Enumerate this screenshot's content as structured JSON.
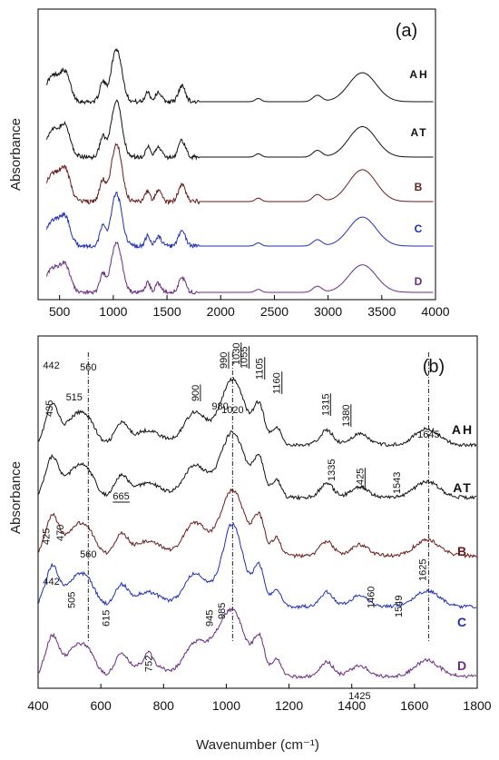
{
  "chart_data": [
    {
      "panel_label": "(a)",
      "type": "line",
      "xlabel": "",
      "ylabel": "Absorbance",
      "xlim": [
        300,
        4000
      ],
      "x_ticks": [
        500,
        1000,
        1500,
        2000,
        2500,
        3000,
        3500,
        4000
      ],
      "series": [
        {
          "name": "AH",
          "color": "#111111",
          "offset": 4,
          "amp": 1.0
        },
        {
          "name": "AT",
          "color": "#111111",
          "offset": 3,
          "amp": 1.05
        },
        {
          "name": "B",
          "color": "#6b1a1a",
          "offset": 2,
          "amp": 1.1
        },
        {
          "name": "C",
          "color": "#1f2fb5",
          "offset": 1,
          "amp": 1.0
        },
        {
          "name": "D",
          "color": "#6a2a82",
          "offset": 0,
          "amp": 0.95
        }
      ]
    },
    {
      "panel_label": "(b)",
      "type": "line",
      "xlabel": "Wavenumber (cm⁻¹)",
      "ylabel": "Absorbance",
      "xlim": [
        400,
        1800
      ],
      "x_ticks": [
        400,
        600,
        800,
        1000,
        1200,
        1400,
        1600,
        1800
      ],
      "reference_lines": [
        560,
        1020,
        1645
      ],
      "series": [
        {
          "name": "AH",
          "color": "#111111",
          "offset": 4
        },
        {
          "name": "AT",
          "color": "#111111",
          "offset": 3
        },
        {
          "name": "B",
          "color": "#6b1a1a",
          "offset": 2
        },
        {
          "name": "C",
          "color": "#1f2fb5",
          "offset": 1
        },
        {
          "name": "D",
          "color": "#6a2a82",
          "offset": 0
        }
      ],
      "annotations": [
        {
          "text": "442",
          "x": 442,
          "series": "AH",
          "rotated": false,
          "underline": false
        },
        {
          "text": "560",
          "x": 560,
          "series": "AH",
          "rotated": false,
          "underline": false
        },
        {
          "text": "900",
          "x": 900,
          "series": "AH",
          "rotated": true,
          "underline": true
        },
        {
          "text": "990",
          "x": 990,
          "series": "AH",
          "rotated": true,
          "underline": true
        },
        {
          "text": "1030",
          "x": 1030,
          "series": "AH",
          "rotated": true,
          "underline": true
        },
        {
          "text": "1055",
          "x": 1055,
          "series": "AH",
          "rotated": true,
          "underline": true
        },
        {
          "text": "1105",
          "x": 1105,
          "series": "AH",
          "rotated": true,
          "underline": true
        },
        {
          "text": "1160",
          "x": 1160,
          "series": "AH",
          "rotated": true,
          "underline": true
        },
        {
          "text": "1315",
          "x": 1315,
          "series": "AH",
          "rotated": true,
          "underline": true
        },
        {
          "text": "1380",
          "x": 1380,
          "series": "AH",
          "rotated": true,
          "underline": true
        },
        {
          "text": "1645",
          "x": 1645,
          "series": "AH",
          "rotated": false,
          "underline": false
        },
        {
          "text": "435",
          "x": 435,
          "series": "AT",
          "rotated": true,
          "underline": false
        },
        {
          "text": "515",
          "x": 515,
          "series": "AT",
          "rotated": false,
          "underline": false
        },
        {
          "text": "980",
          "x": 980,
          "series": "AT",
          "rotated": false,
          "underline": false
        },
        {
          "text": "1020",
          "x": 1020,
          "series": "AT",
          "rotated": false,
          "underline": false
        },
        {
          "text": "665",
          "x": 665,
          "series": "B",
          "rotated": false,
          "underline": true
        },
        {
          "text": "1335",
          "x": 1335,
          "series": "B",
          "rotated": true,
          "underline": false
        },
        {
          "text": "1425",
          "x": 1425,
          "series": "B",
          "rotated": true,
          "underline": true
        },
        {
          "text": "1543",
          "x": 1543,
          "series": "B",
          "rotated": true,
          "underline": false
        },
        {
          "text": "425",
          "x": 425,
          "series": "C",
          "rotated": true,
          "underline": false
        },
        {
          "text": "470",
          "x": 470,
          "series": "C",
          "rotated": true,
          "underline": false
        },
        {
          "text": "560",
          "x": 560,
          "series": "C",
          "rotated": false,
          "underline": false
        },
        {
          "text": "1460",
          "x": 1460,
          "series": "C",
          "rotated": true,
          "underline": false
        },
        {
          "text": "1625",
          "x": 1625,
          "series": "C",
          "rotated": true,
          "underline": false
        },
        {
          "text": "442",
          "x": 442,
          "series": "D",
          "rotated": false,
          "underline": false
        },
        {
          "text": "505",
          "x": 505,
          "series": "D",
          "rotated": true,
          "underline": false
        },
        {
          "text": "615",
          "x": 615,
          "series": "D",
          "rotated": true,
          "underline": false
        },
        {
          "text": "752",
          "x": 752,
          "series": "D",
          "rotated": true,
          "underline": false
        },
        {
          "text": "945",
          "x": 945,
          "series": "D",
          "rotated": true,
          "underline": false
        },
        {
          "text": "985",
          "x": 985,
          "series": "D",
          "rotated": true,
          "underline": false
        },
        {
          "text": "1549",
          "x": 1549,
          "series": "D",
          "rotated": true,
          "underline": false
        },
        {
          "text": "1425",
          "x": 1425,
          "series": "D",
          "rotated": false,
          "underline": false
        }
      ]
    }
  ]
}
